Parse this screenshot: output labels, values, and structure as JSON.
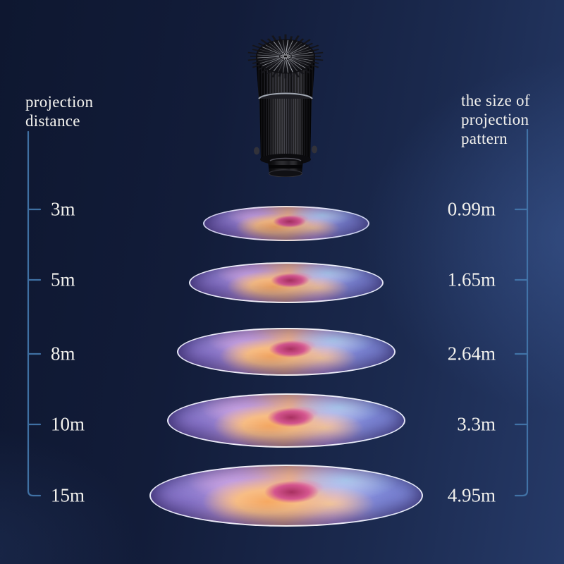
{
  "left_axis": {
    "title_line1": "projection",
    "title_line2": "distance"
  },
  "right_axis": {
    "title_line1": "the size of",
    "title_line2": "projection",
    "title_line3": "pattern"
  },
  "rows": [
    {
      "distance": "3m",
      "size": "0.99m"
    },
    {
      "distance": "5m",
      "size": "1.65m"
    },
    {
      "distance": "8m",
      "size": "2.64m"
    },
    {
      "distance": "10m",
      "size": "3.3m"
    },
    {
      "distance": "15m",
      "size": "4.95m"
    }
  ],
  "icons": {
    "device": "projector-lamp",
    "pattern": "flower-projection"
  },
  "colors": {
    "axis_line": "#4478ad",
    "text": "#f3f2ee",
    "background_top_left": "#0e1730",
    "background_bottom_right": "#263a68",
    "ellipse_border": "#f4f6fc"
  }
}
